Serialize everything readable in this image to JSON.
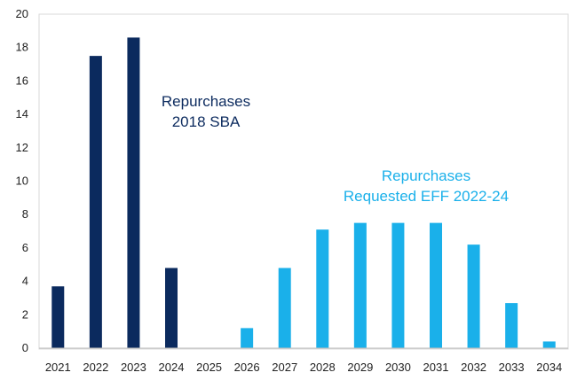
{
  "chart_data": {
    "type": "bar",
    "categories": [
      "2021",
      "2022",
      "2023",
      "2024",
      "2025",
      "2026",
      "2027",
      "2028",
      "2029",
      "2030",
      "2031",
      "2032",
      "2033",
      "2034"
    ],
    "series": [
      {
        "name": "Repurchases 2018 SBA",
        "color": "#0b2a5e",
        "values": [
          3.7,
          17.5,
          18.6,
          4.8,
          0,
          0,
          0,
          0,
          0,
          0,
          0,
          0,
          0,
          0
        ]
      },
      {
        "name": "Repurchases Requested EFF 2022-24",
        "color": "#1ab0ea",
        "values": [
          0,
          0,
          0,
          0,
          0,
          1.2,
          4.8,
          7.1,
          7.5,
          7.5,
          7.5,
          6.2,
          2.7,
          0.4
        ]
      }
    ],
    "ylim": [
      0,
      20
    ],
    "yticks": [
      "0",
      "2",
      "4",
      "6",
      "8",
      "10",
      "12",
      "14",
      "16",
      "18",
      "20"
    ],
    "grid": false,
    "annotations": [
      {
        "lines": [
          "Repurchases",
          "2018 SBA"
        ],
        "color": "#0b2a5e"
      },
      {
        "lines": [
          "Repurchases",
          "Requested EFF 2022-24"
        ],
        "color": "#1ab0ea"
      }
    ]
  }
}
